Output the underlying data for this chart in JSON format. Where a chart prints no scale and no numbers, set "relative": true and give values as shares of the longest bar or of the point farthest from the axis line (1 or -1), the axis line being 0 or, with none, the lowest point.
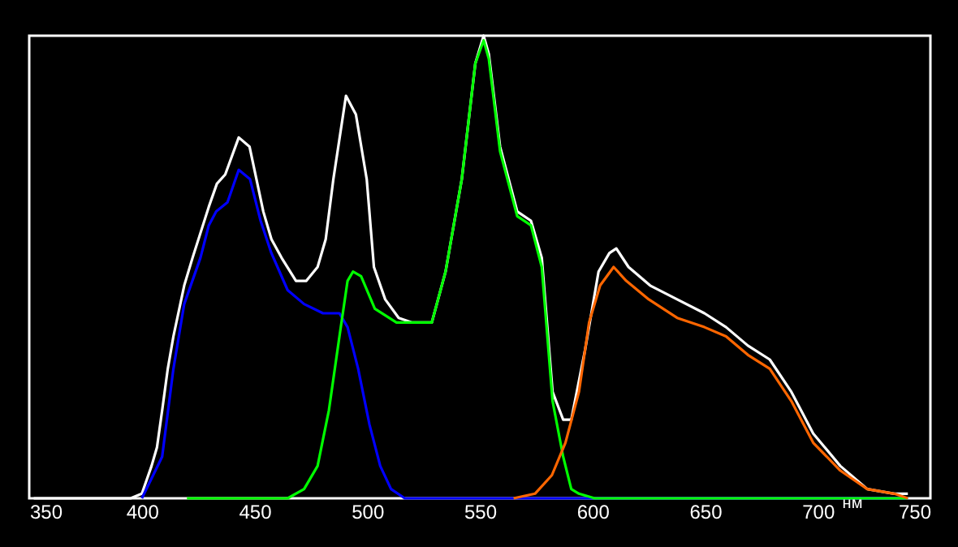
{
  "chart_data": {
    "type": "line",
    "relative": true,
    "xlabel": "нм",
    "xlim": [
      350,
      750
    ],
    "xticks": [
      350,
      400,
      450,
      500,
      550,
      600,
      650,
      700,
      750
    ],
    "grid": false,
    "marker": "none",
    "line_style": "solid",
    "series": [
      {
        "color": "#ffffff",
        "x": [
          352,
          395,
          400,
          404.3,
          406.7,
          409,
          411.5,
          414,
          418.8,
          422.5,
          429.7,
          433.3,
          437,
          443,
          447.8,
          453.9,
          457.5,
          462,
          468.4,
          473,
          478,
          481.6,
          485,
          490.6,
          495,
          499.8,
          503,
          508,
          514,
          520,
          528.7,
          534.8,
          542,
          548,
          551.7,
          554,
          559,
          566.6,
          572.7,
          577.5,
          582.3,
          587,
          590.6,
          596.7,
          602.7,
          607.5,
          610.6,
          616,
          625.6,
          637.6,
          649.7,
          659.3,
          669,
          678.7,
          688.3,
          698,
          710,
          722,
          734,
          740
        ],
        "values": [
          0,
          0,
          0.01,
          0.07,
          0.11,
          0.19,
          0.28,
          0.35,
          0.46,
          0.52,
          0.63,
          0.68,
          0.7,
          0.78,
          0.76,
          0.62,
          0.56,
          0.52,
          0.47,
          0.47,
          0.5,
          0.56,
          0.69,
          0.87,
          0.83,
          0.69,
          0.5,
          0.43,
          0.39,
          0.38,
          0.38,
          0.49,
          0.69,
          0.94,
          1.0,
          0.96,
          0.76,
          0.62,
          0.6,
          0.52,
          0.23,
          0.17,
          0.17,
          0.32,
          0.49,
          0.53,
          0.54,
          0.5,
          0.46,
          0.43,
          0.4,
          0.37,
          0.33,
          0.3,
          0.23,
          0.14,
          0.07,
          0.02,
          0.01,
          0.01
        ]
      },
      {
        "color": "#0000ff",
        "x": [
          400,
          409,
          414,
          418.8,
          426,
          429.7,
          433,
          438,
          443,
          448,
          452.7,
          457.5,
          464.7,
          472,
          480.4,
          487.7,
          491.3,
          496,
          501,
          505.8,
          510.6,
          516.7,
          530,
          740
        ],
        "values": [
          0,
          0.09,
          0.28,
          0.42,
          0.52,
          0.59,
          0.62,
          0.64,
          0.71,
          0.69,
          0.6,
          0.53,
          0.45,
          0.42,
          0.4,
          0.4,
          0.37,
          0.28,
          0.16,
          0.07,
          0.02,
          0,
          0,
          0
        ]
      },
      {
        "color": "#00ff00",
        "x": [
          420,
          464.7,
          472,
          478,
          483,
          487.7,
          491.3,
          493.7,
          497.3,
          503.4,
          513,
          520,
          528.7,
          534.8,
          542,
          548,
          551.7,
          554,
          559,
          566.6,
          572.7,
          577.5,
          582.3,
          587,
          590.6,
          594,
          601,
          740
        ],
        "values": [
          0,
          0,
          0.02,
          0.07,
          0.19,
          0.35,
          0.47,
          0.49,
          0.48,
          0.41,
          0.38,
          0.38,
          0.38,
          0.49,
          0.69,
          0.94,
          0.99,
          0.95,
          0.75,
          0.61,
          0.59,
          0.5,
          0.21,
          0.09,
          0.02,
          0.01,
          0,
          0
        ]
      },
      {
        "color": "#ff6600",
        "x": [
          565,
          574.5,
          582,
          588,
          594,
          598.5,
          603.4,
          609.4,
          615,
          625,
          637.6,
          649.7,
          659.3,
          669,
          678.7,
          688.3,
          698,
          710,
          722,
          734,
          740
        ],
        "values": [
          0,
          0.01,
          0.05,
          0.12,
          0.23,
          0.38,
          0.46,
          0.5,
          0.47,
          0.43,
          0.39,
          0.37,
          0.35,
          0.31,
          0.28,
          0.21,
          0.12,
          0.06,
          0.02,
          0.01,
          0
        ]
      }
    ]
  }
}
